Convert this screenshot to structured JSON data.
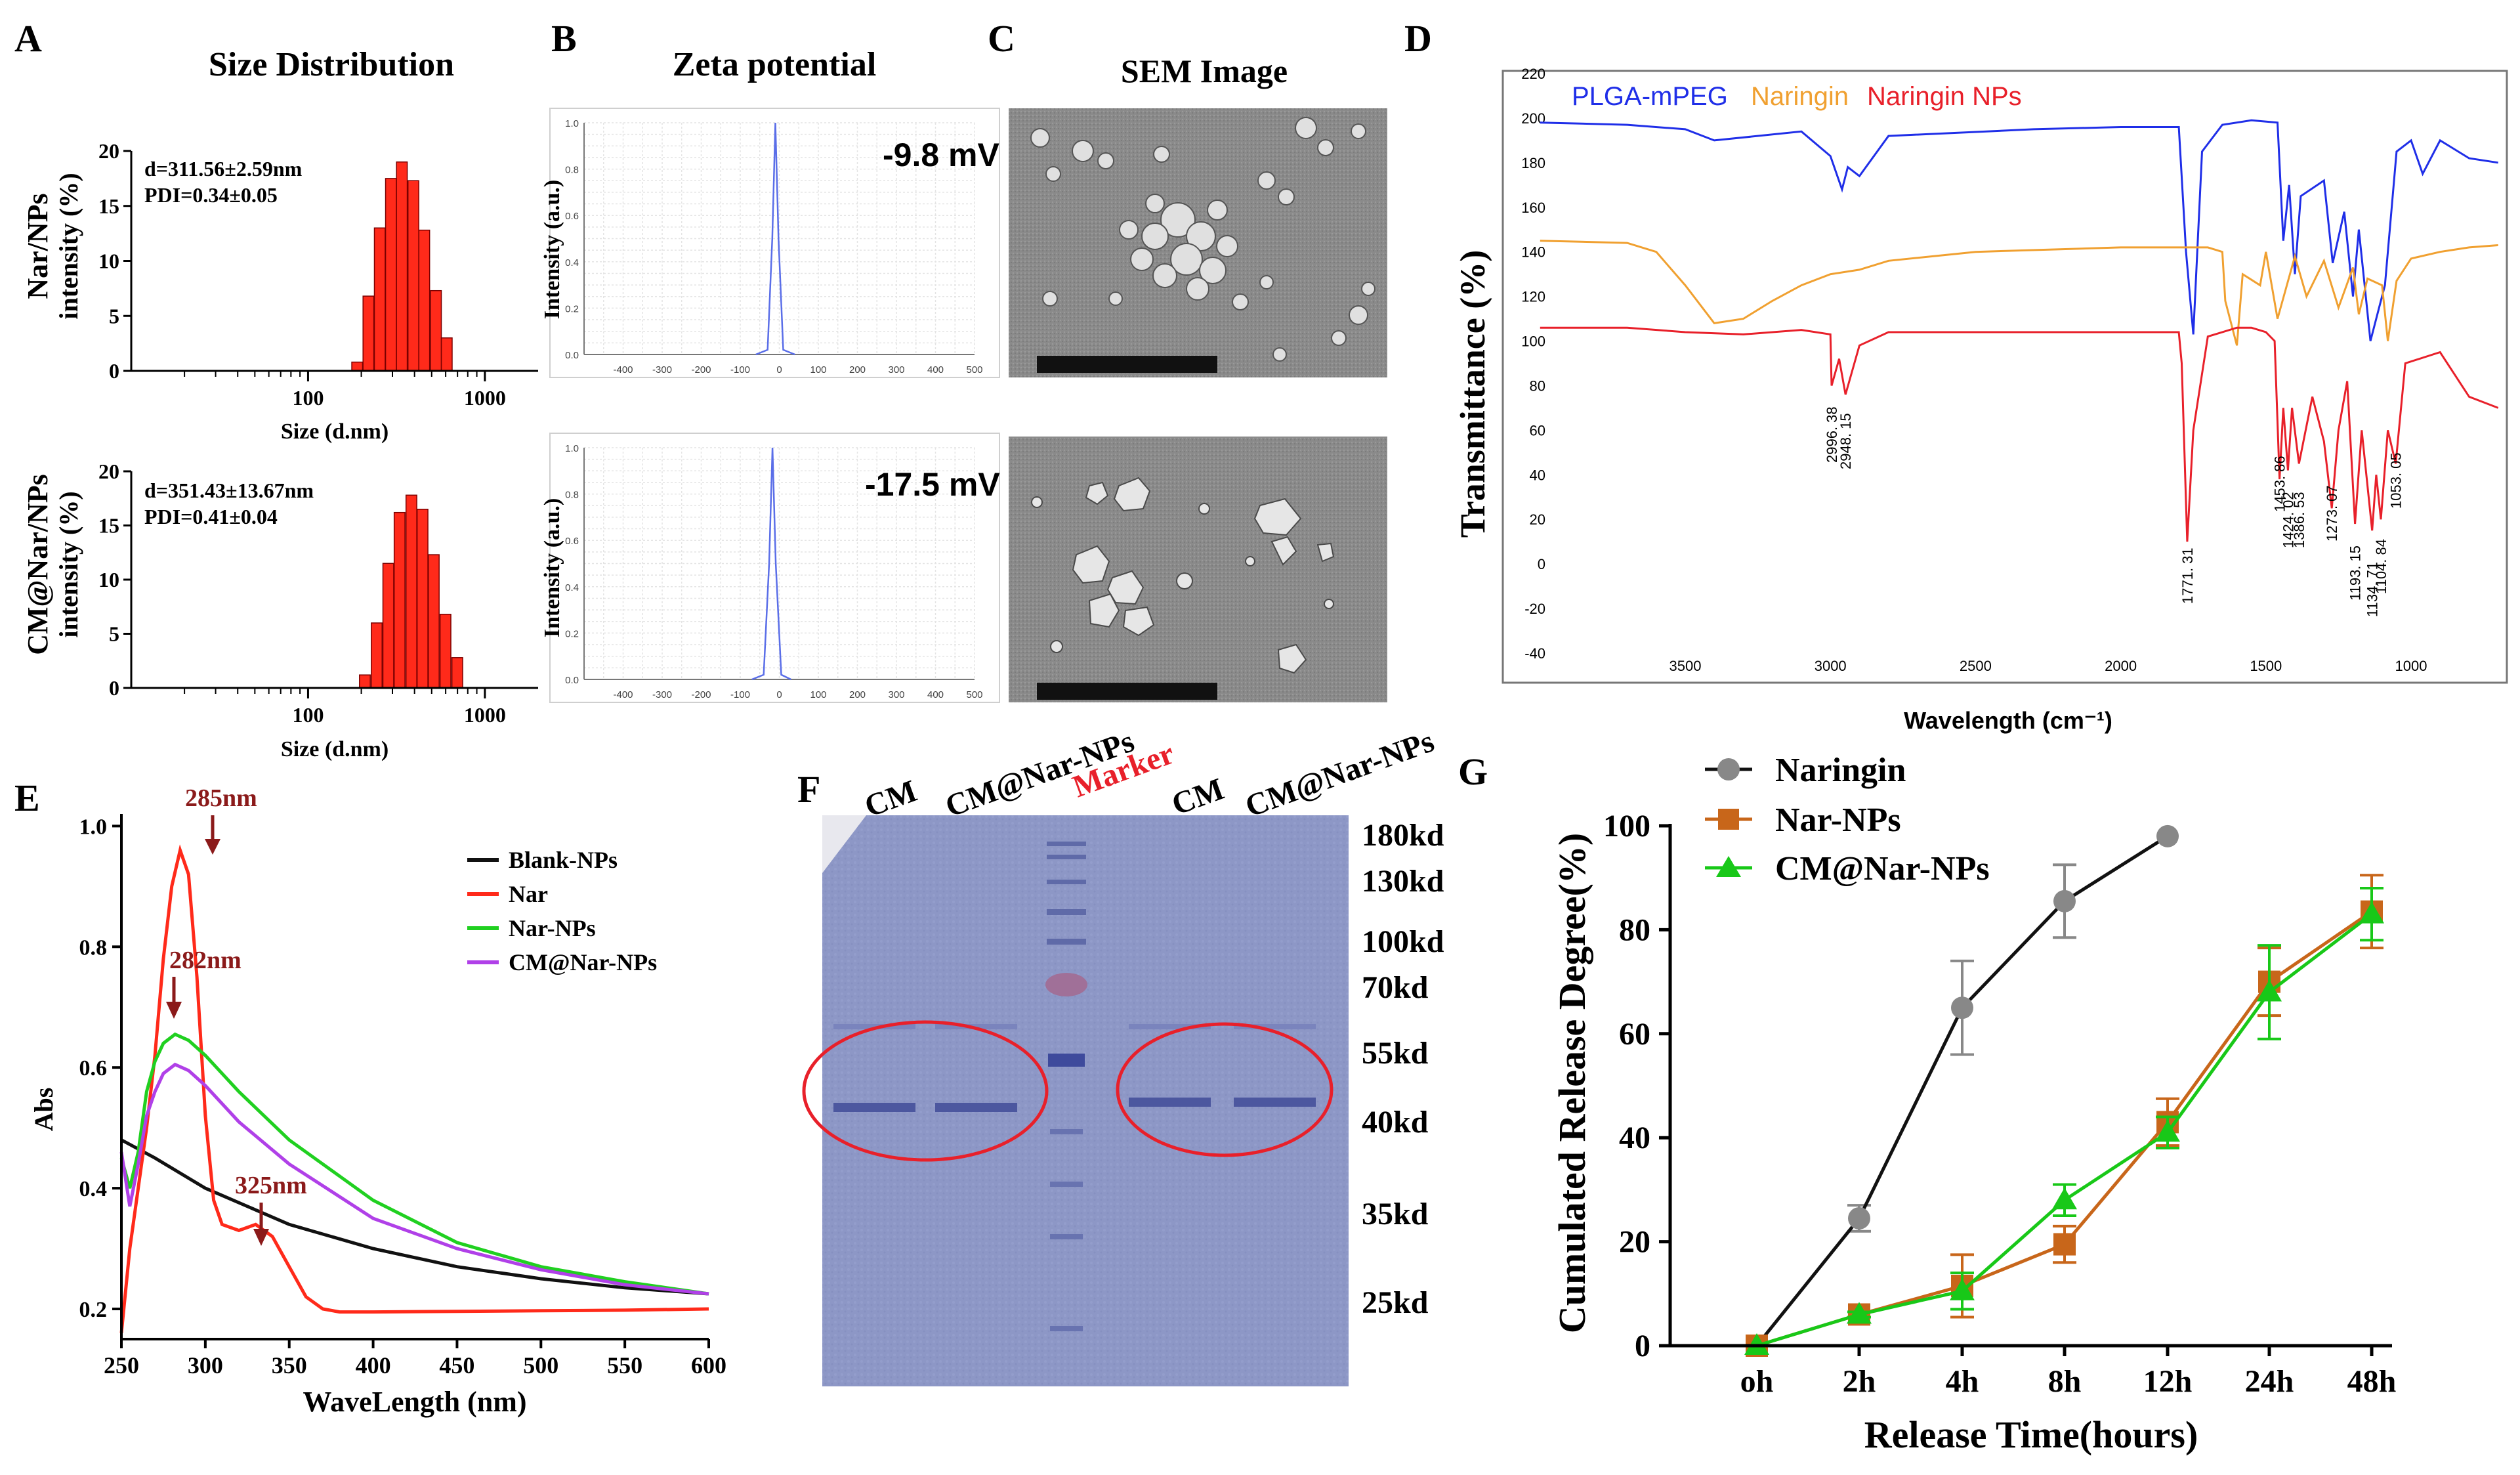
{
  "panels": {
    "A": {
      "letter": "A",
      "title": "Size Distribution",
      "top": {
        "ylabel_line1": "Nar/NPs",
        "ylabel_line2": "intensity (%)",
        "annotation_line1": "d=311.56±2.59nm",
        "annotation_line2": "PDI=0.34±0.05",
        "xlabel": "Size (d.nm)"
      },
      "bottom": {
        "ylabel_line1": "CM@Nar/NPs",
        "ylabel_line2": "intensity (%)",
        "annotation_line1": "d=351.43±13.67nm",
        "annotation_line2": "PDI=0.41±0.04",
        "xlabel": "Size (d.nm)"
      },
      "y_ticks": [
        "0",
        "5",
        "10",
        "15",
        "20"
      ],
      "x_ticks": [
        "100",
        "1000"
      ],
      "bar_color": "#ff2a1a"
    },
    "B": {
      "letter": "B",
      "title": "Zeta potential",
      "top_value": "-9.8 mV",
      "bottom_value": "-17.5 mV",
      "ylabel": "Intensity (a.u.)",
      "y_ticks": [
        "0.0",
        "0.2",
        "0.4",
        "0.6",
        "0.8",
        "1.0"
      ],
      "x_ticks": [
        "-400",
        "-300",
        "-200",
        "-100",
        "0",
        "100",
        "200",
        "300",
        "400",
        "500"
      ],
      "line_color": "#5a6ee8"
    },
    "C": {
      "letter": "C",
      "title": "SEM Image"
    },
    "D": {
      "letter": "D",
      "legend": [
        "PLGA-mPEG",
        "Naringin",
        "Naringin NPs"
      ],
      "colors": [
        "#1f2ee8",
        "#f0a030",
        "#e8202a"
      ],
      "ylabel": "Transmittance (%)",
      "xlabel": "Wavelength (cm⁻¹)",
      "y_ticks": [
        "220",
        "200",
        "180",
        "160",
        "140",
        "120",
        "100",
        "80",
        "60",
        "40",
        "20",
        "0",
        "-20",
        "-40"
      ],
      "x_ticks": [
        "3500",
        "3000",
        "2500",
        "2000",
        "1500",
        "1000"
      ],
      "peaks": [
        "2996. 38",
        "2948. 15",
        "1771. 31",
        "1453. 86",
        "1424. 02",
        "1386. 53",
        "1273. 07",
        "1193. 15",
        "1134. 71",
        "1104. 84",
        "1053. 05"
      ]
    },
    "E": {
      "letter": "E",
      "ylabel": "Abs",
      "xlabel": "WaveLength (nm)",
      "legend": [
        "Blank-NPs",
        "Nar",
        "Nar-NPs",
        "CM@Nar-NPs"
      ],
      "colors": [
        "#111111",
        "#ff2a1a",
        "#20d020",
        "#b040e8"
      ],
      "annotations": [
        "285nm",
        "282nm",
        "325nm"
      ],
      "annotation_color": "#8b1a1a",
      "y_ticks": [
        "0.2",
        "0.4",
        "0.6",
        "0.8",
        "1.0"
      ],
      "x_ticks": [
        "250",
        "300",
        "350",
        "400",
        "450",
        "500",
        "550",
        "600"
      ]
    },
    "F": {
      "letter": "F",
      "lanes": [
        "CM",
        "CM@Nar-NPs",
        "Marker",
        "CM",
        "CM@Nar-NPs"
      ],
      "marker_color": "#e8202a",
      "kd_labels": [
        "180kd",
        "130kd",
        "100kd",
        "70kd",
        "55kd",
        "40kd",
        "35kd",
        "25kd"
      ]
    },
    "G": {
      "letter": "G",
      "legend": [
        "Naringin",
        "Nar-NPs",
        "CM@Nar-NPs"
      ],
      "colors": [
        "#888888",
        "#c8661a",
        "#18c818"
      ],
      "ylabel": "Cumulated Release Degree(%)",
      "xlabel": "Release Time(hours)",
      "y_ticks": [
        "0",
        "20",
        "40",
        "60",
        "80",
        "100"
      ],
      "x_ticks": [
        "oh",
        "2h",
        "4h",
        "8h",
        "12h",
        "24h",
        "48h"
      ]
    }
  },
  "chart_data": [
    {
      "panel": "A-top",
      "type": "bar",
      "title": "Size Distribution",
      "xlabel": "Size (d.nm)",
      "ylabel": "intensity (%)",
      "x_scale": "log",
      "xlim": [
        10,
        2000
      ],
      "ylim": [
        0,
        20
      ],
      "categories": [
        190,
        220,
        255,
        295,
        340,
        395,
        455,
        530,
        610
      ],
      "values": [
        0.8,
        6.8,
        13.0,
        17.5,
        19.0,
        17.3,
        12.8,
        7.3,
        3.0
      ]
    },
    {
      "panel": "A-bottom",
      "type": "bar",
      "xlabel": "Size (d.nm)",
      "ylabel": "intensity (%)",
      "x_scale": "log",
      "xlim": [
        10,
        2000
      ],
      "ylim": [
        0,
        20
      ],
      "categories": [
        210,
        245,
        285,
        330,
        385,
        445,
        515,
        600,
        700
      ],
      "values": [
        1.2,
        6.0,
        11.5,
        16.2,
        17.8,
        16.5,
        12.3,
        6.8,
        2.8
      ]
    },
    {
      "panel": "B-top",
      "type": "line",
      "title": "Zeta potential",
      "ylabel": "Intensity (a.u.)",
      "xlim": [
        -500,
        500
      ],
      "ylim": [
        0,
        1.0
      ],
      "annotation": "-9.8 mV",
      "x": [
        -60,
        -30,
        -18,
        -10,
        -2,
        10,
        40
      ],
      "y": [
        0.0,
        0.02,
        0.5,
        1.0,
        0.5,
        0.02,
        0.0
      ]
    },
    {
      "panel": "B-bottom",
      "type": "line",
      "ylabel": "Intensity (a.u.)",
      "xlim": [
        -500,
        500
      ],
      "ylim": [
        0,
        1.0
      ],
      "annotation": "-17.5 mV",
      "x": [
        -70,
        -40,
        -26,
        -17.5,
        -9,
        5,
        30
      ],
      "y": [
        0.0,
        0.02,
        0.5,
        1.0,
        0.5,
        0.02,
        0.0
      ]
    },
    {
      "panel": "D",
      "type": "line",
      "xlabel": "Wavelength (cm⁻¹)",
      "ylabel": "Transmittance (%)",
      "xlim": [
        4000,
        700
      ],
      "ylim": [
        -40,
        220
      ],
      "series": [
        {
          "name": "PLGA-mPEG",
          "x": [
            4000,
            3700,
            3500,
            3400,
            3100,
            3000,
            2960,
            2940,
            2900,
            2800,
            2300,
            2000,
            1800,
            1775,
            1750,
            1720,
            1650,
            1550,
            1460,
            1440,
            1420,
            1400,
            1380,
            1300,
            1270,
            1230,
            1200,
            1180,
            1140,
            1110,
            1090,
            1050,
            1000,
            960,
            900,
            800,
            700
          ],
          "y": [
            198,
            197,
            195,
            190,
            194,
            183,
            168,
            178,
            174,
            192,
            195,
            196,
            196,
            140,
            103,
            185,
            197,
            199,
            198,
            145,
            170,
            130,
            165,
            172,
            135,
            158,
            120,
            150,
            100,
            115,
            125,
            185,
            190,
            175,
            190,
            182,
            180
          ]
        },
        {
          "name": "Naringin",
          "x": [
            4000,
            3700,
            3600,
            3500,
            3400,
            3300,
            3200,
            3100,
            3000,
            2900,
            2800,
            2500,
            2000,
            1700,
            1650,
            1640,
            1600,
            1580,
            1520,
            1500,
            1460,
            1400,
            1360,
            1300,
            1250,
            1200,
            1180,
            1150,
            1100,
            1080,
            1050,
            1000,
            900,
            800,
            700
          ],
          "y": [
            145,
            144,
            140,
            125,
            108,
            110,
            118,
            125,
            130,
            132,
            136,
            140,
            142,
            142,
            140,
            118,
            98,
            130,
            125,
            140,
            110,
            138,
            120,
            136,
            115,
            133,
            112,
            128,
            125,
            100,
            127,
            137,
            140,
            142,
            143
          ]
        },
        {
          "name": "Naringin NPs",
          "x": [
            4000,
            3700,
            3500,
            3300,
            3100,
            3000,
            2996,
            2970,
            2948,
            2900,
            2800,
            2400,
            2000,
            1800,
            1790,
            1771,
            1750,
            1700,
            1600,
            1550,
            1500,
            1470,
            1453,
            1440,
            1424,
            1410,
            1386,
            1340,
            1300,
            1273,
            1250,
            1220,
            1193,
            1170,
            1134,
            1120,
            1104,
            1080,
            1053,
            1020,
            900,
            800,
            700
          ],
          "y": [
            106,
            106,
            104,
            103,
            105,
            103,
            80,
            92,
            76,
            98,
            104,
            104,
            104,
            104,
            90,
            10,
            60,
            102,
            106,
            106,
            104,
            100,
            38,
            70,
            42,
            70,
            45,
            75,
            55,
            25,
            60,
            82,
            18,
            60,
            15,
            40,
            20,
            60,
            45,
            90,
            95,
            75,
            70
          ]
        }
      ]
    },
    {
      "panel": "E",
      "type": "line",
      "xlabel": "WaveLength (nm)",
      "ylabel": "Abs",
      "xlim": [
        250,
        600
      ],
      "ylim": [
        0.15,
        1.02
      ],
      "series": [
        {
          "name": "Blank-NPs",
          "x": [
            250,
            270,
            300,
            350,
            400,
            450,
            500,
            550,
            600
          ],
          "y": [
            0.48,
            0.45,
            0.4,
            0.34,
            0.3,
            0.27,
            0.25,
            0.235,
            0.225
          ]
        },
        {
          "name": "Nar",
          "x": [
            250,
            255,
            260,
            265,
            270,
            275,
            280,
            285,
            290,
            295,
            300,
            305,
            310,
            320,
            330,
            340,
            350,
            360,
            370,
            380,
            400,
            450,
            500,
            550,
            600
          ],
          "y": [
            0.16,
            0.3,
            0.4,
            0.5,
            0.62,
            0.78,
            0.9,
            0.96,
            0.92,
            0.75,
            0.52,
            0.38,
            0.34,
            0.33,
            0.34,
            0.32,
            0.27,
            0.22,
            0.2,
            0.195,
            0.195,
            0.196,
            0.197,
            0.198,
            0.2
          ]
        },
        {
          "name": "Nar-NPs",
          "x": [
            250,
            255,
            260,
            265,
            270,
            275,
            282,
            290,
            300,
            320,
            350,
            400,
            450,
            500,
            550,
            600
          ],
          "y": [
            0.45,
            0.4,
            0.46,
            0.56,
            0.61,
            0.64,
            0.655,
            0.645,
            0.62,
            0.56,
            0.48,
            0.38,
            0.31,
            0.27,
            0.245,
            0.225
          ]
        },
        {
          "name": "CM@Nar-NPs",
          "x": [
            250,
            255,
            260,
            265,
            270,
            275,
            282,
            290,
            300,
            320,
            350,
            400,
            450,
            500,
            550,
            600
          ],
          "y": [
            0.46,
            0.37,
            0.44,
            0.52,
            0.56,
            0.59,
            0.605,
            0.595,
            0.57,
            0.51,
            0.44,
            0.35,
            0.3,
            0.265,
            0.24,
            0.225
          ]
        }
      ]
    },
    {
      "panel": "G",
      "type": "line",
      "xlabel": "Release Time(hours)",
      "ylabel": "Cumulated Release Degree(%)",
      "categories": [
        "oh",
        "2h",
        "4h",
        "8h",
        "12h",
        "24h",
        "48h"
      ],
      "ylim": [
        0,
        100
      ],
      "series": [
        {
          "name": "Naringin",
          "values": [
            0,
            24.5,
            65,
            85.5,
            98,
            null,
            null
          ],
          "errors": [
            0,
            2.5,
            9,
            7,
            0,
            null,
            null
          ]
        },
        {
          "name": "Nar-NPs",
          "values": [
            0,
            6,
            11.5,
            19.5,
            43,
            70,
            83.5
          ],
          "errors": [
            0,
            0.5,
            6,
            3.5,
            4.5,
            6.5,
            7
          ]
        },
        {
          "name": "CM@Nar-NPs",
          "values": [
            0,
            6,
            10.5,
            28,
            41,
            68,
            83
          ],
          "errors": [
            0,
            0.5,
            3.5,
            3,
            3,
            9,
            5
          ]
        }
      ]
    }
  ]
}
